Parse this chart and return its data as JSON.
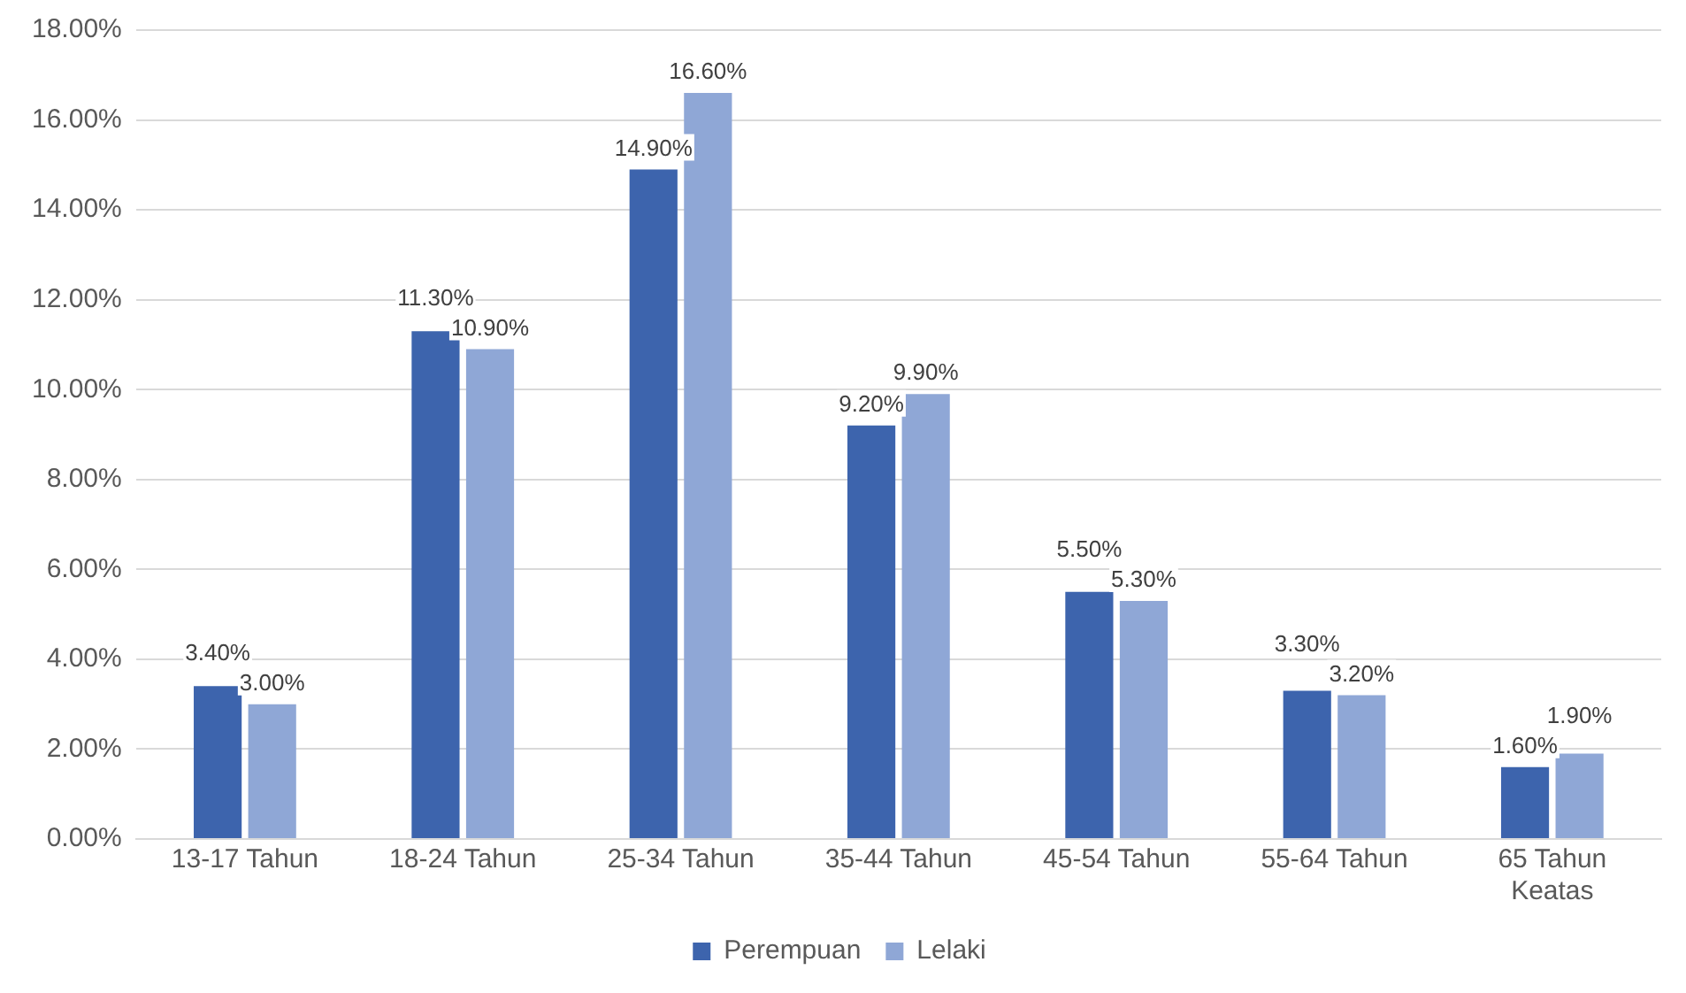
{
  "chart_data": {
    "type": "bar",
    "categories": [
      "13-17 Tahun",
      "18-24 Tahun",
      "25-34 Tahun",
      "35-44 Tahun",
      "45-54 Tahun",
      "55-64 Tahun",
      "65 Tahun Keatas"
    ],
    "series": [
      {
        "name": "Perempuan",
        "color": "#3d64ad",
        "values": [
          3.4,
          11.3,
          14.9,
          9.2,
          5.5,
          3.3,
          1.6
        ],
        "value_labels": [
          "3.40%",
          "11.30%",
          "14.90%",
          "9.20%",
          "5.50%",
          "3.30%",
          "1.60%"
        ]
      },
      {
        "name": "Lelaki",
        "color": "#8fa7d6",
        "values": [
          3.0,
          10.9,
          16.6,
          9.9,
          5.3,
          3.2,
          1.9
        ],
        "value_labels": [
          "3.00%",
          "10.90%",
          "16.60%",
          "9.90%",
          "5.30%",
          "3.20%",
          "1.90%"
        ]
      }
    ],
    "ylim": [
      0,
      18
    ],
    "yticks": [
      {
        "value": 0,
        "label": "0.00%"
      },
      {
        "value": 2,
        "label": "2.00%"
      },
      {
        "value": 4,
        "label": "4.00%"
      },
      {
        "value": 6,
        "label": "6.00%"
      },
      {
        "value": 8,
        "label": "8.00%"
      },
      {
        "value": 10,
        "label": "10.00%"
      },
      {
        "value": 12,
        "label": "12.00%"
      },
      {
        "value": 14,
        "label": "14.00%"
      },
      {
        "value": 16,
        "label": "16.00%"
      },
      {
        "value": 18,
        "label": "18.00%"
      }
    ],
    "grid": "y",
    "legend": "bottom"
  }
}
